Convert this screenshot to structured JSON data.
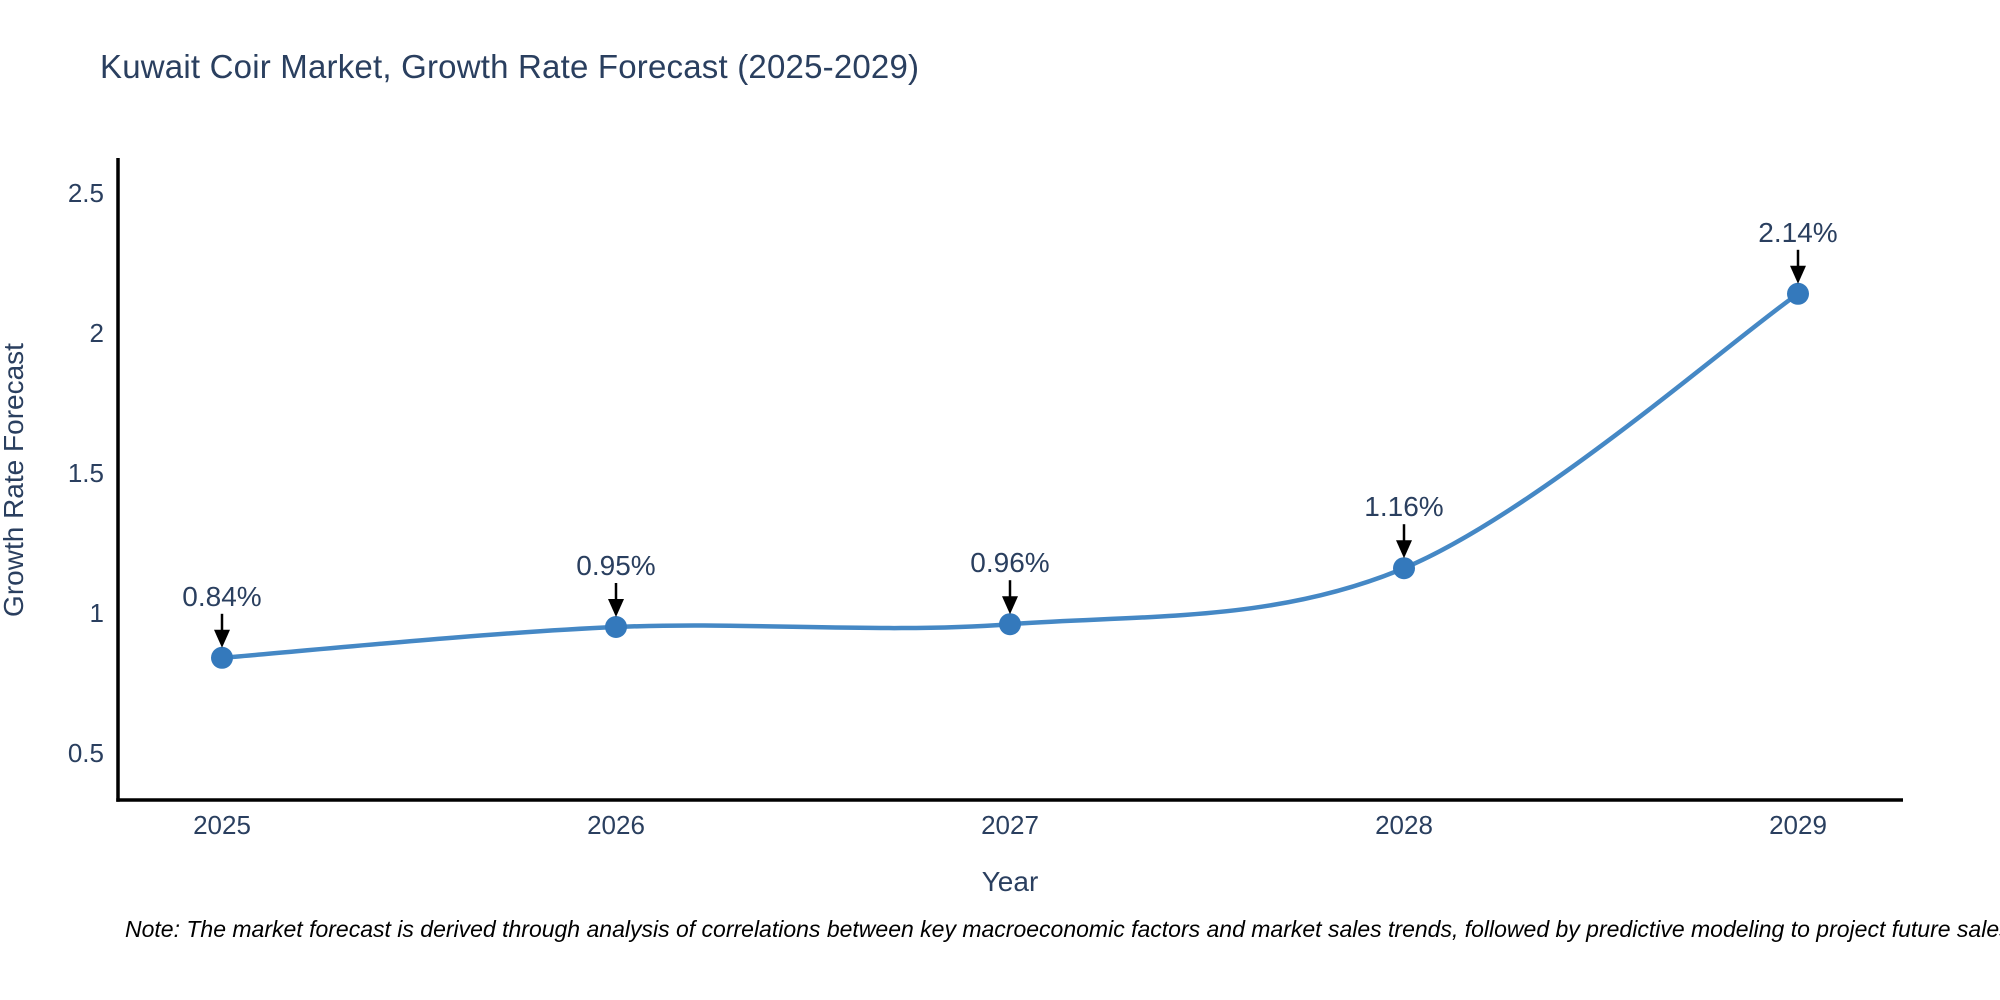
{
  "chart_data": {
    "type": "line",
    "title": "Kuwait Coir Market, Growth Rate Forecast (2025-2029)",
    "xlabel": "Year",
    "ylabel": "Growth Rate Forecast",
    "categories": [
      "2025",
      "2026",
      "2027",
      "2028",
      "2029"
    ],
    "series": [
      {
        "name": "Growth Rate Forecast",
        "values": [
          0.84,
          0.95,
          0.96,
          1.16,
          2.14
        ],
        "point_labels": [
          "0.84%",
          "0.95%",
          "0.96%",
          "1.16%",
          "2.14%"
        ]
      }
    ],
    "ytick_labels": [
      "0.5",
      "1",
      "1.5",
      "2",
      "2.5"
    ],
    "ytick_values": [
      0.5,
      1.0,
      1.5,
      2.0,
      2.5
    ],
    "ylim": [
      0.33,
      2.63
    ],
    "grid": false,
    "legend_shown": false,
    "line_style": "spline",
    "annotation_arrows": true,
    "note": "Note: The market forecast is derived through analysis of correlations between key macroeconomic factors and market sales trends, followed by predictive modeling to project future sales",
    "colors": {
      "line": "#4588c5",
      "marker": "#3479bc",
      "text": "#2a3f5f",
      "axis_line": "#000000",
      "arrow": "#000000",
      "note_text": "#000000",
      "background": "#ffffff"
    }
  }
}
